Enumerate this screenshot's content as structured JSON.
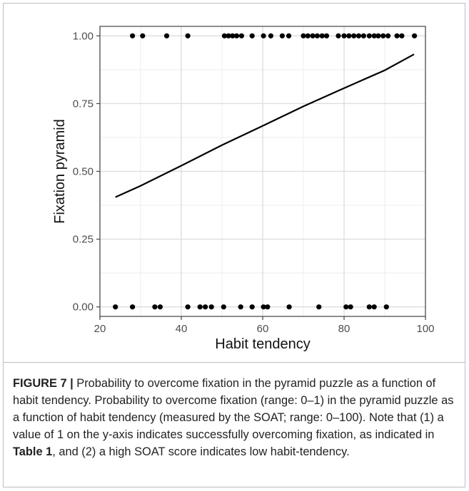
{
  "chart_data": {
    "type": "scatter",
    "xlabel": "Habit tendency",
    "ylabel": "Fixation pyramid",
    "xlim": [
      20,
      100
    ],
    "ylim": [
      -0.035,
      1.035
    ],
    "x_ticks": [
      20,
      40,
      60,
      80,
      100
    ],
    "y_ticks": [
      0.0,
      0.25,
      0.5,
      0.75,
      1.0
    ],
    "x_tick_labels": [
      "20",
      "40",
      "60",
      "80",
      "100"
    ],
    "y_tick_labels": [
      "0.00",
      "0.25",
      "0.50",
      "0.75",
      "1.00"
    ],
    "grid": true,
    "series": [
      {
        "type": "scatter",
        "points": [
          [
            23.8,
            0
          ],
          [
            28.0,
            0
          ],
          [
            33.5,
            0
          ],
          [
            34.8,
            0
          ],
          [
            41.6,
            0
          ],
          [
            44.6,
            0
          ],
          [
            45.9,
            0
          ],
          [
            47.4,
            0
          ],
          [
            50.4,
            0
          ],
          [
            54.6,
            0
          ],
          [
            57.4,
            0
          ],
          [
            60.2,
            0
          ],
          [
            61.2,
            0
          ],
          [
            66.5,
            0
          ],
          [
            73.8,
            0
          ],
          [
            80.5,
            0
          ],
          [
            81.6,
            0
          ],
          [
            86.2,
            0
          ],
          [
            87.4,
            0
          ],
          [
            90.4,
            0
          ],
          [
            28.0,
            1
          ],
          [
            30.5,
            1
          ],
          [
            36.4,
            1
          ],
          [
            41.6,
            1
          ],
          [
            50.6,
            1
          ],
          [
            51.6,
            1
          ],
          [
            52.6,
            1
          ],
          [
            53.6,
            1
          ],
          [
            54.8,
            1
          ],
          [
            57.4,
            1
          ],
          [
            60.2,
            1
          ],
          [
            62.0,
            1
          ],
          [
            64.8,
            1
          ],
          [
            66.4,
            1
          ],
          [
            70.0,
            1
          ],
          [
            71.1,
            1
          ],
          [
            72.3,
            1
          ],
          [
            73.4,
            1
          ],
          [
            74.6,
            1
          ],
          [
            75.7,
            1
          ],
          [
            78.6,
            1
          ],
          [
            80.0,
            1
          ],
          [
            81.2,
            1
          ],
          [
            82.4,
            1
          ],
          [
            83.6,
            1
          ],
          [
            84.8,
            1
          ],
          [
            86.2,
            1
          ],
          [
            87.4,
            1
          ],
          [
            88.4,
            1
          ],
          [
            89.6,
            1
          ],
          [
            90.8,
            1
          ],
          [
            93.0,
            1
          ],
          [
            94.2,
            1
          ],
          [
            97.3,
            1
          ]
        ]
      },
      {
        "type": "line",
        "x": [
          23.8,
          30,
          40,
          50,
          60,
          70,
          80,
          90,
          97.2
        ],
        "y": [
          0.405,
          0.447,
          0.521,
          0.597,
          0.668,
          0.74,
          0.807,
          0.873,
          0.932
        ]
      }
    ]
  },
  "caption": {
    "label": "FIGURE 7 |",
    "text_1": " Probability to overcome fixation in the pyramid puzzle as a function of habit tendency. Probability to overcome fixation (range: 0–1) in the pyramid puzzle as a function of habit tendency (measured by the SOAT; range: 0–100). Note that (1) a value of 1 on the y-axis indicates successfully overcoming fixation, as indicated in ",
    "table_ref": "Table 1",
    "text_2": ", and (2) a high SOAT score indicates low habit-tendency."
  }
}
